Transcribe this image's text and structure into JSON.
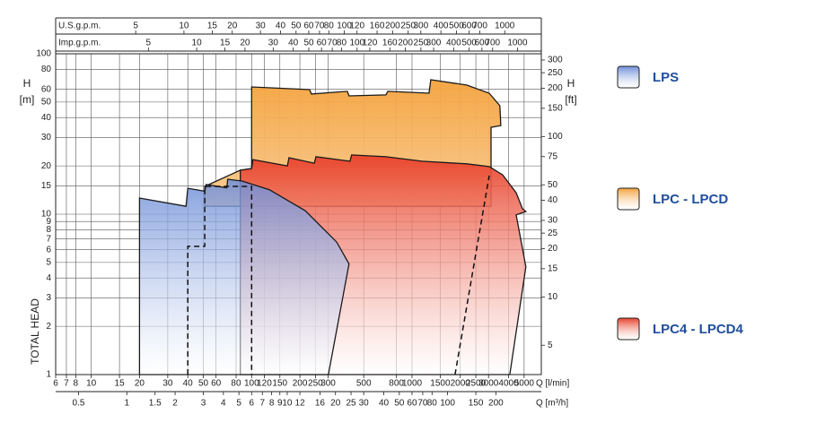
{
  "chart_data": {
    "type": "area",
    "log_x": true,
    "log_y": true,
    "grid": true,
    "x_label": "Q [l/min]",
    "xlim": [
      6,
      6400
    ],
    "xticks": [
      6,
      7,
      8,
      10,
      15,
      20,
      30,
      40,
      50,
      60,
      80,
      100,
      120,
      150,
      200,
      250,
      300,
      500,
      800,
      1000,
      1500,
      2000,
      2500,
      3000,
      4000,
      5000
    ],
    "y_label": "H",
    "y_unit": "[m]",
    "y_title": "TOTAL HEAD",
    "ylim": [
      1,
      100
    ],
    "yticks": [
      1,
      2,
      3,
      4,
      5,
      6,
      7,
      8,
      9,
      10,
      15,
      20,
      30,
      40,
      50,
      60,
      80,
      100
    ],
    "y2_label": "H",
    "y2_unit": "[ft]",
    "y2lim": [
      3.281,
      328.1
    ],
    "y2ticks": [
      5,
      10,
      15,
      20,
      25,
      30,
      40,
      50,
      75,
      100,
      150,
      200,
      250,
      300
    ],
    "x_axes": [
      {
        "label": "U.S.g.p.m.",
        "position": "top",
        "xlim": [
          1.585,
          1691
        ],
        "xticks": [
          5,
          10,
          15,
          20,
          30,
          40,
          50,
          60,
          70,
          80,
          100,
          120,
          160,
          200,
          250,
          300,
          400,
          500,
          600,
          700,
          1000
        ]
      },
      {
        "label": "Imp.g.p.m.",
        "position": "top",
        "xlim": [
          1.32,
          1408
        ],
        "xticks": [
          5,
          10,
          15,
          20,
          30,
          40,
          50,
          60,
          70,
          80,
          100,
          120,
          160,
          200,
          250,
          300,
          400,
          500,
          600,
          700,
          1000
        ]
      },
      {
        "label": "Q [m³/h]",
        "position": "bottom",
        "xlim": [
          0.36,
          384
        ],
        "xticks": [
          0.5,
          1,
          1.5,
          2,
          3,
          4,
          5,
          6,
          7,
          8,
          9,
          10,
          12,
          16,
          20,
          25,
          30,
          40,
          50,
          60,
          70,
          80,
          100,
          150,
          200
        ]
      }
    ],
    "series": [
      {
        "name": "LPS",
        "color": "#6f8fd8",
        "x": [
          20,
          20,
          39,
          40,
          51,
          52,
          70,
          71,
          87,
          129,
          216,
          339,
          405,
          301
        ],
        "values": [
          1,
          12.6,
          11.2,
          14.5,
          13.9,
          15.3,
          14.6,
          16.5,
          16.1,
          14.2,
          10.5,
          6.7,
          4.9,
          1
        ]
      },
      {
        "name": "LPC - LPCD",
        "color": "#f4a23c",
        "x": [
          51,
          85,
          100,
          100,
          230,
          236,
          395,
          405,
          688,
          706,
          1277,
          1310,
          2190,
          3030,
          3530,
          3580,
          3110,
          3110,
          51
        ],
        "values": [
          14.9,
          18.8,
          18.8,
          62.1,
          59.8,
          56.1,
          58.3,
          54.6,
          55.4,
          58.3,
          56.8,
          68.9,
          63.8,
          56.8,
          47.4,
          35.7,
          34.8,
          11.2,
          11.2
        ]
      },
      {
        "name": "LPC4 - LPCD4",
        "color": "#e8412a",
        "x": [
          85,
          100,
          102,
          167,
          171,
          246,
          252,
          410,
          420,
          688,
          1151,
          2190,
          3030,
          3670,
          4460,
          4880,
          5130,
          4460,
          5130,
          4070,
          85
        ],
        "values": [
          18.8,
          19.3,
          21.9,
          20.0,
          22.5,
          20.8,
          22.8,
          21.4,
          23.4,
          22.8,
          21.4,
          20.6,
          19.8,
          17.6,
          13.6,
          10.8,
          10.4,
          9.9,
          4.7,
          1,
          1
        ]
      }
    ],
    "dashed_lines": [
      {
        "x": [
          40,
          40,
          51,
          51,
          100,
          100
        ],
        "values": [
          1,
          6.3,
          6.3,
          14.9,
          14.9,
          1
        ]
      },
      {
        "x": [
          1855,
          3030
        ],
        "values": [
          1,
          17.4
        ]
      }
    ]
  }
}
